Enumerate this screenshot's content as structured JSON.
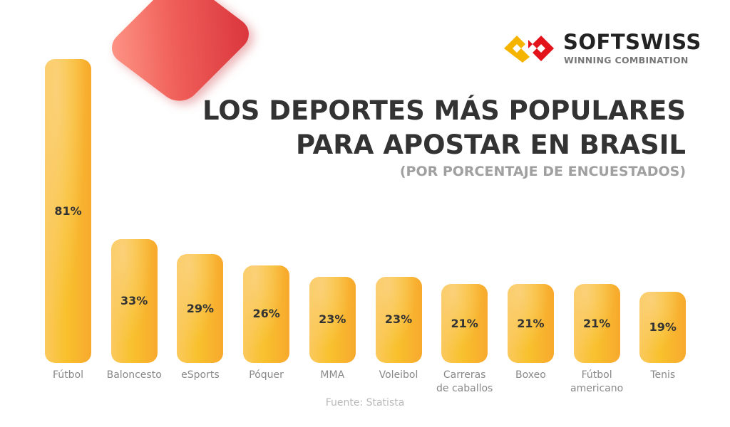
{
  "logo": {
    "brand": "SOFTSWISS",
    "tagline": "WINNING COMBINATION",
    "colors": {
      "yellow": "#f5b400",
      "red": "#e3131b"
    }
  },
  "source": "Fuente: Statista",
  "chart_data": {
    "type": "bar",
    "title": "LOS DEPORTES MÁS POPULARES\nPARA APOSTAR EN BRASIL",
    "subtitle": "(POR PORCENTAJE DE ENCUESTADOS)",
    "categories": [
      "Fútbol",
      "Baloncesto",
      "eSports",
      "Póquer",
      "MMA",
      "Voleibol",
      "Carreras\nde caballos",
      "Boxeo",
      "Fútbol\namericano",
      "Tenis"
    ],
    "values": [
      81,
      33,
      29,
      26,
      23,
      23,
      21,
      21,
      21,
      19
    ],
    "data_labels": [
      "81%",
      "33%",
      "29%",
      "26%",
      "23%",
      "23%",
      "21%",
      "21%",
      "21%",
      "19%"
    ],
    "ylim": [
      0,
      81
    ],
    "grid": false,
    "bar_color": "#f8b82e"
  }
}
